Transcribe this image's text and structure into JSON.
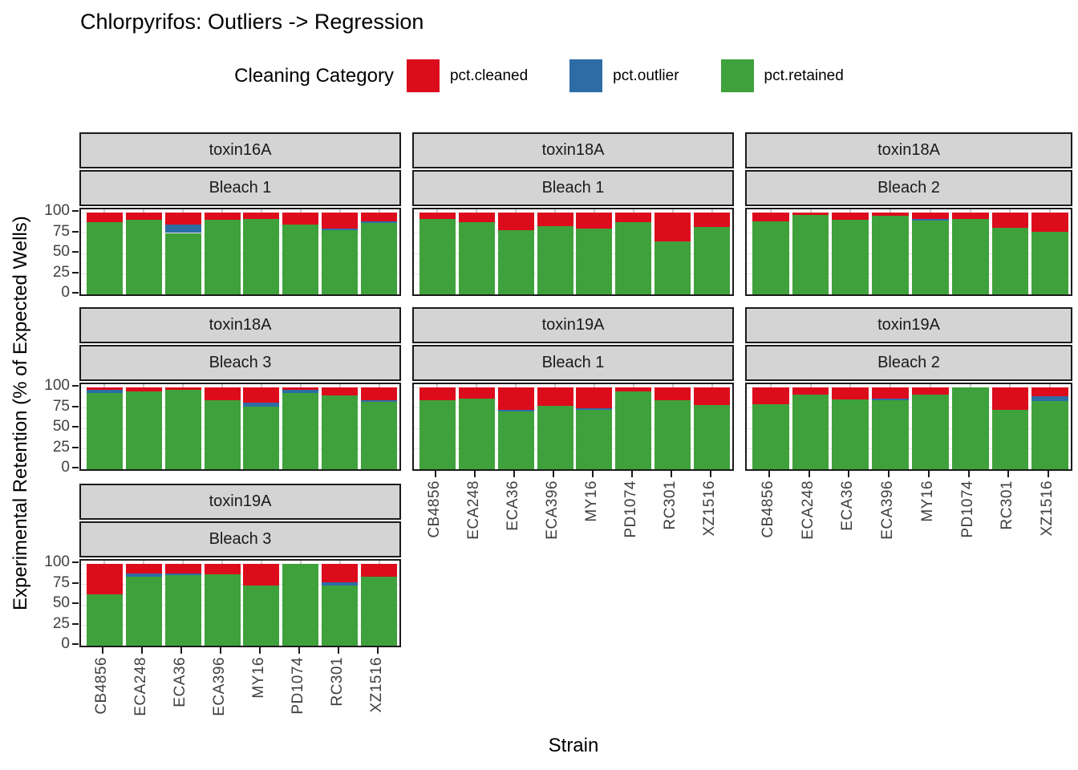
{
  "title": "Chlorpyrifos: Outliers -> Regression",
  "legend": {
    "title": "Cleaning Category",
    "items": [
      {
        "label": "pct.cleaned",
        "color": "#dc0c1d"
      },
      {
        "label": "pct.outlier",
        "color": "#2e6ca6"
      },
      {
        "label": "pct.retained",
        "color": "#3fa13c"
      }
    ]
  },
  "axes": {
    "y_title": "Experimental Retention (% of Expected Wells)",
    "x_title": "Strain",
    "y_ticks": [
      100,
      75,
      50,
      25,
      0
    ]
  },
  "chart_data": {
    "type": "bar",
    "stacked": true,
    "title": "Chlorpyrifos: Outliers -> Regression",
    "xlabel": "Strain",
    "ylabel": "Experimental Retention (% of Expected Wells)",
    "ylim": [
      0,
      100
    ],
    "grid": true,
    "legend_position": "top",
    "categories": [
      "CB4856",
      "ECA248",
      "ECA36",
      "ECA396",
      "MY16",
      "PD1074",
      "RC301",
      "XZ1516"
    ],
    "series_order_bottom_to_top": [
      "pct.retained",
      "pct.outlier",
      "pct.cleaned"
    ],
    "facets": [
      {
        "toxin": "toxin16A",
        "bleach": "Bleach 1",
        "col": 0,
        "row": 0,
        "x_labels": false,
        "pct_retained": [
          88,
          91,
          75,
          91,
          92,
          85,
          78,
          87
        ],
        "pct_outlier": [
          0,
          0,
          10,
          0,
          0,
          0,
          2,
          2
        ],
        "pct_cleaned": [
          12,
          9,
          15,
          9,
          8,
          15,
          20,
          11
        ]
      },
      {
        "toxin": "toxin18A",
        "bleach": "Bleach 1",
        "col": 1,
        "row": 0,
        "x_labels": false,
        "pct_retained": [
          92,
          88,
          78,
          83,
          80,
          88,
          65,
          82
        ],
        "pct_outlier": [
          0,
          0,
          0,
          0,
          0,
          0,
          0,
          0
        ],
        "pct_cleaned": [
          8,
          12,
          22,
          17,
          20,
          12,
          35,
          18
        ]
      },
      {
        "toxin": "toxin18A",
        "bleach": "Bleach 2",
        "col": 2,
        "row": 0,
        "x_labels": false,
        "pct_retained": [
          89,
          97,
          91,
          96,
          90,
          92,
          81,
          76
        ],
        "pct_outlier": [
          0,
          0,
          0,
          0,
          2,
          0,
          0,
          0
        ],
        "pct_cleaned": [
          11,
          3,
          9,
          4,
          8,
          8,
          19,
          24
        ]
      },
      {
        "toxin": "toxin18A",
        "bleach": "Bleach 3",
        "col": 0,
        "row": 1,
        "x_labels": false,
        "pct_retained": [
          93,
          95,
          97,
          84,
          76,
          93,
          90,
          82
        ],
        "pct_outlier": [
          4,
          0,
          0,
          0,
          5,
          4,
          0,
          2
        ],
        "pct_cleaned": [
          3,
          5,
          3,
          16,
          19,
          3,
          10,
          16
        ]
      },
      {
        "toxin": "toxin19A",
        "bleach": "Bleach 1",
        "col": 1,
        "row": 1,
        "x_labels": true,
        "pct_retained": [
          84,
          86,
          71,
          77,
          73,
          95,
          84,
          78
        ],
        "pct_outlier": [
          0,
          0,
          2,
          0,
          2,
          0,
          0,
          0
        ],
        "pct_cleaned": [
          16,
          14,
          27,
          23,
          25,
          5,
          16,
          22
        ]
      },
      {
        "toxin": "toxin19A",
        "bleach": "Bleach 2",
        "col": 2,
        "row": 1,
        "x_labels": true,
        "pct_retained": [
          79,
          91,
          85,
          84,
          91,
          100,
          73,
          83
        ],
        "pct_outlier": [
          0,
          0,
          0,
          2,
          0,
          0,
          0,
          6
        ],
        "pct_cleaned": [
          21,
          9,
          15,
          14,
          9,
          0,
          27,
          11
        ]
      },
      {
        "toxin": "toxin19A",
        "bleach": "Bleach 3",
        "col": 0,
        "row": 2,
        "x_labels": true,
        "pct_retained": [
          63,
          84,
          86,
          87,
          74,
          100,
          74,
          84
        ],
        "pct_outlier": [
          0,
          4,
          2,
          0,
          0,
          0,
          3,
          0
        ],
        "pct_cleaned": [
          37,
          12,
          12,
          13,
          26,
          0,
          23,
          16
        ]
      }
    ]
  }
}
